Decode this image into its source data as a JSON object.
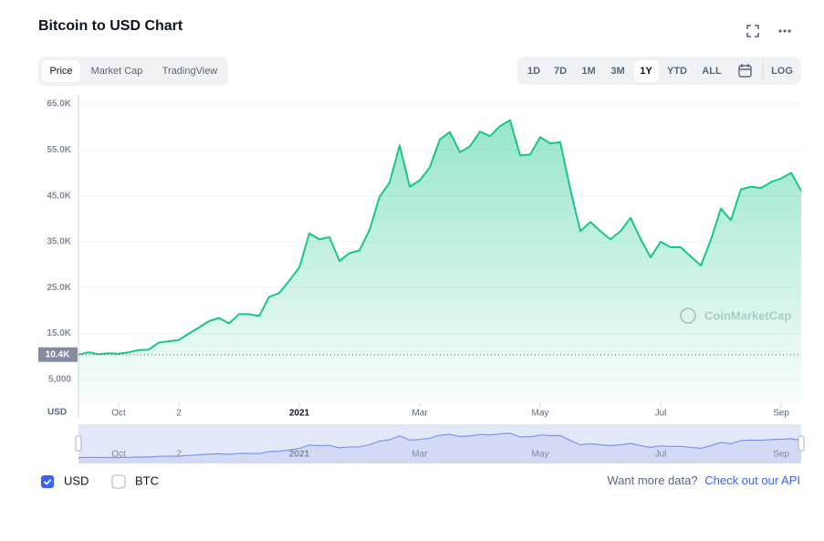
{
  "header": {
    "title": "Bitcoin to USD Chart"
  },
  "tabs": [
    "Price",
    "Market Cap",
    "TradingView"
  ],
  "ranges": [
    "1D",
    "7D",
    "1M",
    "3M",
    "1Y",
    "YTD",
    "ALL"
  ],
  "log_button": "LOG",
  "chart_data": {
    "type": "line",
    "categories": [
      null,
      null,
      null,
      null,
      "Oct",
      null,
      null,
      null,
      null,
      null,
      "2",
      null,
      null,
      null,
      null,
      null,
      null,
      null,
      null,
      null,
      null,
      null,
      "2021",
      null,
      null,
      null,
      null,
      null,
      null,
      null,
      null,
      null,
      null,
      null,
      "Mar",
      null,
      null,
      null,
      null,
      null,
      null,
      null,
      null,
      null,
      null,
      null,
      "May",
      null,
      null,
      null,
      null,
      null,
      null,
      null,
      null,
      null,
      null,
      null,
      "Jul",
      null,
      null,
      null,
      null,
      null,
      null,
      null,
      null,
      null,
      null,
      null,
      "Sep",
      null,
      null
    ],
    "series": [
      {
        "color": "#16c784",
        "values": [
          10400,
          10900,
          10500,
          10700,
          10600,
          10900,
          11400,
          11500,
          13000,
          13300,
          13600,
          15000,
          16300,
          17700,
          18400,
          17200,
          19200,
          19200,
          18800,
          23000,
          23800,
          26500,
          29400,
          36800,
          35500,
          36000,
          30800,
          32500,
          33100,
          37600,
          44800,
          47900,
          56000,
          47000,
          48400,
          51200,
          57300,
          58900,
          54500,
          55800,
          59000,
          58000,
          60200,
          61500,
          53800,
          54000,
          57800,
          56400,
          56700,
          46400,
          37300,
          39300,
          37300,
          35500,
          37300,
          40200,
          35600,
          31600,
          35000,
          33800,
          33800,
          31800,
          29800,
          35400,
          42200,
          39700,
          46400,
          47000,
          46700,
          48000,
          48800,
          50000,
          46100
        ]
      }
    ],
    "ylim": [
      0,
      67000
    ],
    "yticks": [
      {
        "value": 5000,
        "label": "5,000"
      },
      {
        "value": 15000,
        "label": "15.0K"
      },
      {
        "value": 25000,
        "label": "25.0K"
      },
      {
        "value": 35000,
        "label": "35.0K"
      },
      {
        "value": 45000,
        "label": "45.0K"
      },
      {
        "value": 55000,
        "label": "55.0K"
      },
      {
        "value": 65000,
        "label": "65.0K"
      }
    ],
    "y_label": "USD",
    "reference": {
      "value": 10400,
      "label": "10.4K"
    },
    "watermark": "CoinMarketCap",
    "grid": true
  },
  "currency_toggles": [
    {
      "label": "USD",
      "checked": true
    },
    {
      "label": "BTC",
      "checked": false
    }
  ],
  "footer": {
    "prompt": "Want more data?",
    "link": "Check out our API"
  }
}
